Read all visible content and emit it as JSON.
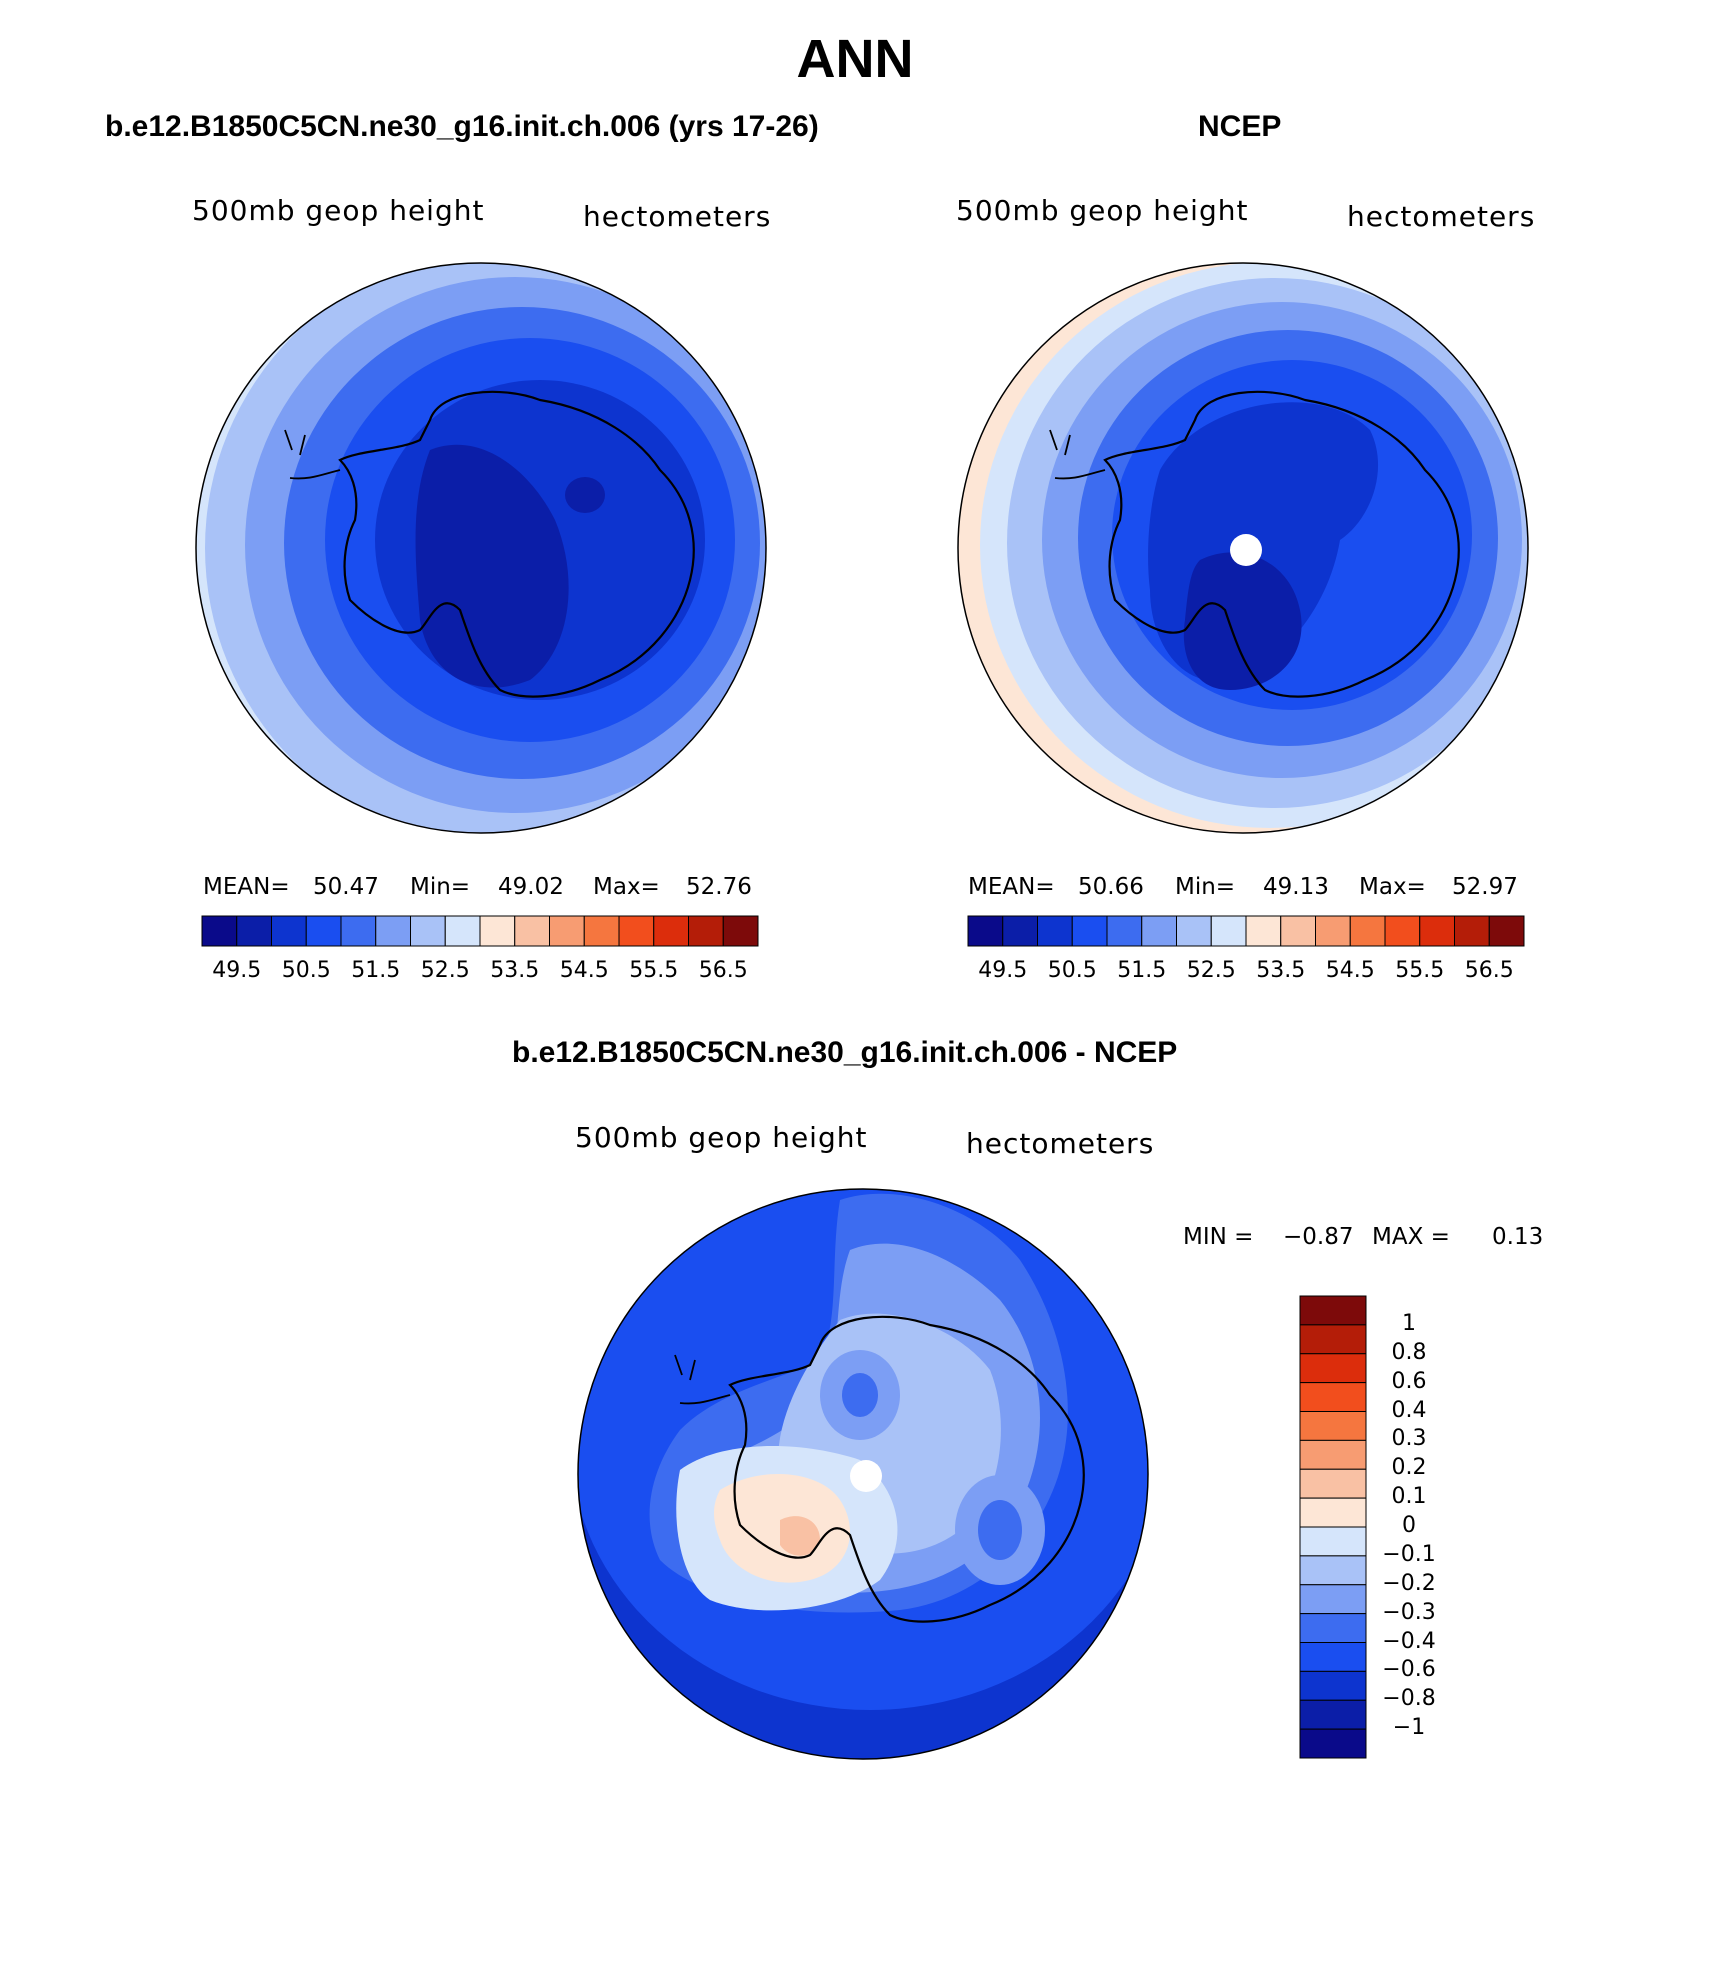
{
  "title": "ANN",
  "panels": [
    {
      "title": "b.e12.B1850C5CN.ne30_g16.init.ch.006 (yrs 17-26)",
      "left_label": "500mb geop height",
      "right_label": "hectometers",
      "stats": {
        "mean_label": "MEAN=",
        "mean": "50.47",
        "min_label": "Min=",
        "min": "49.02",
        "max_label": "Max=",
        "max": "52.76"
      }
    },
    {
      "title": "NCEP",
      "left_label": "500mb geop height",
      "right_label": "hectometers",
      "stats": {
        "mean_label": "MEAN=",
        "mean": "50.66",
        "min_label": "Min=",
        "min": "49.13",
        "max_label": "Max=",
        "max": "52.97"
      }
    },
    {
      "title": "b.e12.B1850C5CN.ne30_g16.init.ch.006 - NCEP",
      "left_label": "500mb geop height",
      "right_label": "hectometers",
      "stats": {
        "min_label": "MIN =",
        "min": "−0.87",
        "max_label": "MAX =",
        "max": "0.13"
      }
    }
  ],
  "abs_colorbar": {
    "colors": [
      "#0a0a8a",
      "#0b1ea8",
      "#0d34cf",
      "#1a4ef0",
      "#3d6cf0",
      "#7c9ef4",
      "#a9c2f7",
      "#d5e5fb",
      "#fde6d6",
      "#f9c1a4",
      "#f79c72",
      "#f5763f",
      "#f24e1d",
      "#dc2d0c",
      "#b41d08",
      "#7d0a0a"
    ],
    "ticks": [
      "49.5",
      "50.5",
      "51.5",
      "52.5",
      "53.5",
      "54.5",
      "55.5",
      "56.5"
    ]
  },
  "diff_colorbar": {
    "colors": [
      "#0a0a8a",
      "#0b1ea8",
      "#0d34cf",
      "#1a4ef0",
      "#3d6cf0",
      "#7c9ef4",
      "#a9c2f7",
      "#d5e5fb",
      "#fde6d6",
      "#f9c1a4",
      "#f79c72",
      "#f5763f",
      "#f24e1d",
      "#dc2d0c",
      "#b41d08",
      "#7d0a0a"
    ],
    "ticks": [
      "1",
      "0.8",
      "0.6",
      "0.4",
      "0.3",
      "0.2",
      "0.1",
      "0",
      "−0.1",
      "−0.2",
      "−0.3",
      "−0.4",
      "−0.6",
      "−0.8",
      "−1"
    ]
  }
}
